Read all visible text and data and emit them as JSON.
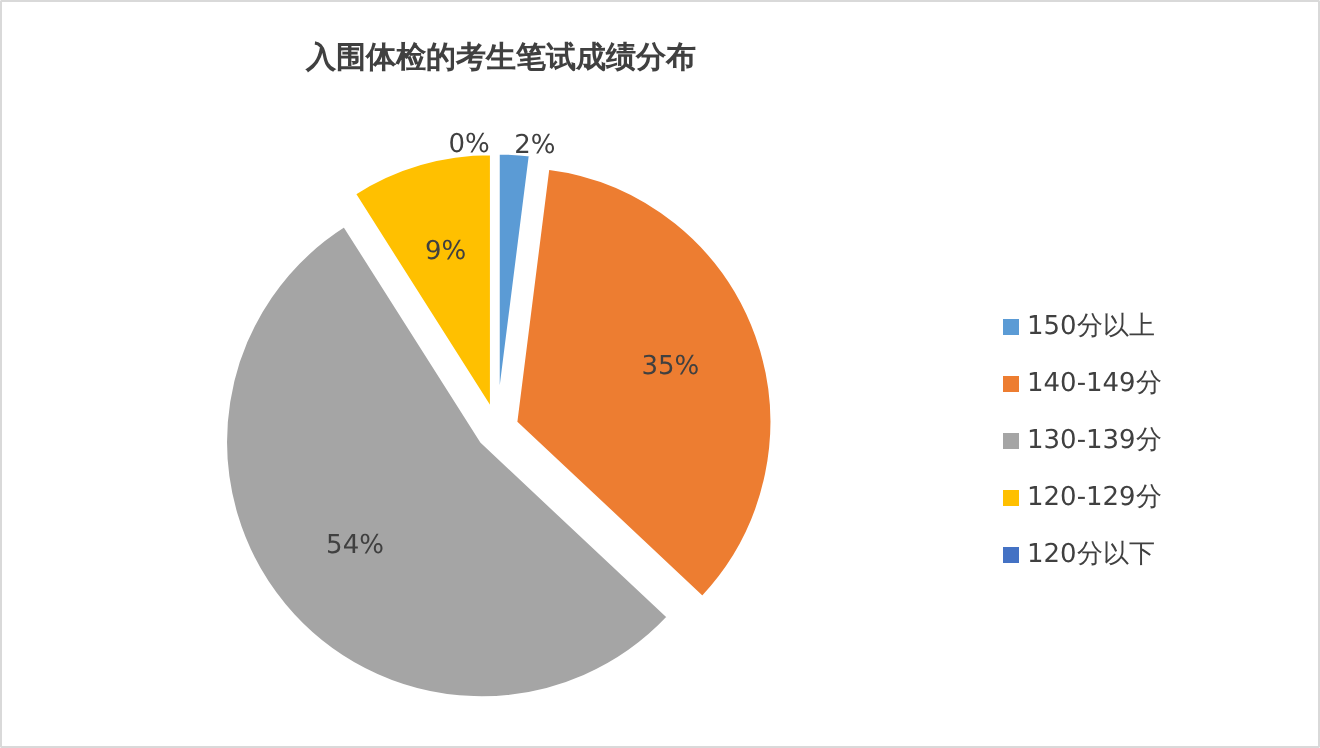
{
  "chart_data": {
    "type": "pie",
    "title": "入围体检的考生笔试成绩分布",
    "categories": [
      "150分以上",
      "140-149分",
      "130-139分",
      "120-129分",
      "120分以下"
    ],
    "values": [
      2,
      35,
      54,
      9,
      0
    ],
    "colors": [
      "#5b9bd5",
      "#ed7d31",
      "#a5a5a5",
      "#ffc000",
      "#4472c4"
    ],
    "value_labels": [
      "2%",
      "35%",
      "54%",
      "9%",
      "0%"
    ],
    "legend": "right"
  }
}
